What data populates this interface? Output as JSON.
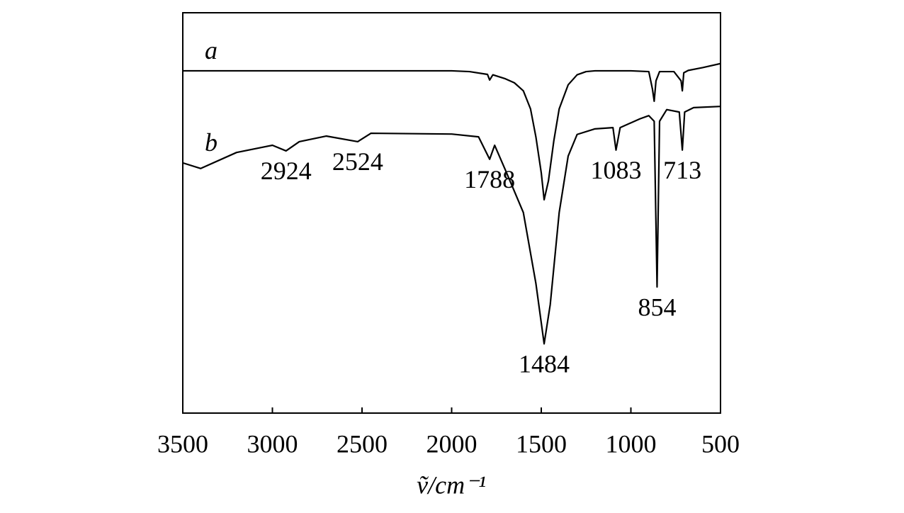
{
  "chart_data": {
    "type": "line",
    "x_label": "ṽ/cm⁻¹",
    "xlim": [
      3500,
      500
    ],
    "xticks": [
      3500,
      3000,
      2500,
      2000,
      1500,
      1000,
      500
    ],
    "ylim": [
      0,
      100
    ],
    "series": [
      {
        "name": "a",
        "color": "#000000",
        "x": [
          3500,
          3000,
          2500,
          2000,
          1900,
          1800,
          1788,
          1770,
          1700,
          1650,
          1600,
          1560,
          1530,
          1500,
          1484,
          1460,
          1430,
          1400,
          1350,
          1300,
          1250,
          1200,
          1000,
          900,
          880,
          870,
          860,
          840,
          760,
          720,
          713,
          705,
          680,
          600,
          500
        ],
        "values": [
          85.5,
          85.5,
          85.5,
          85.5,
          85.3,
          84.6,
          83.2,
          84.5,
          83.5,
          82.5,
          80.5,
          76,
          69,
          60,
          53.3,
          58,
          68,
          76,
          82,
          84.5,
          85.3,
          85.5,
          85.5,
          85.3,
          81,
          77.9,
          83,
          85.3,
          85.3,
          83,
          80.5,
          85,
          85.6,
          86.3,
          87.3
        ]
      },
      {
        "name": "b",
        "color": "#000000",
        "x": [
          3500,
          3400,
          3200,
          3000,
          2924,
          2850,
          2700,
          2524,
          2450,
          2000,
          1850,
          1788,
          1760,
          1700,
          1600,
          1530,
          1484,
          1450,
          1400,
          1350,
          1300,
          1200,
          1100,
          1083,
          1060,
          950,
          900,
          870,
          854,
          840,
          800,
          730,
          713,
          700,
          650,
          500
        ],
        "values": [
          62.5,
          61.1,
          65.1,
          66.9,
          65.5,
          67.8,
          69.2,
          67.8,
          69.9,
          69.7,
          69.0,
          63.4,
          66.9,
          60.7,
          50.1,
          32.4,
          17.3,
          27.1,
          50.1,
          64.2,
          69.6,
          71.0,
          71.3,
          65.7,
          71.3,
          73.5,
          74.3,
          72.9,
          31.5,
          72.9,
          75.8,
          75.2,
          65.7,
          75.2,
          76.3,
          76.6
        ]
      }
    ],
    "peak_labels": [
      2924,
      2524,
      1788,
      1083,
      713,
      854,
      1484
    ]
  }
}
